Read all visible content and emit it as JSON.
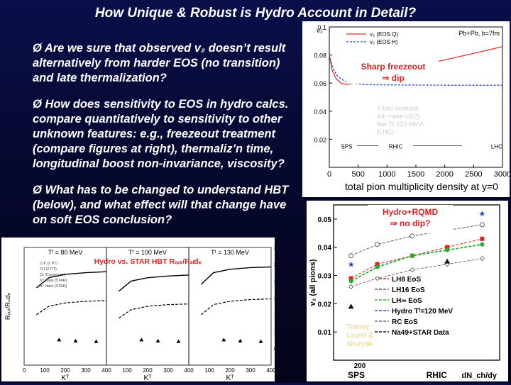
{
  "title": "How Unique & Robust is Hydro Account in Detail?",
  "bullet_glyph": "Ø",
  "bullets": [
    {
      "text": "Are we sure that observed v₂ doesn’t result alternatively from harder EOS (no transition) and late thermalization?"
    },
    {
      "text": "How does sensitivity to EOS in hydro calcs. compare quantitatively to sensitivity to other unknown features: e.g., freezeout treatment (compare figures at right), thermaliz’n time, longitudinal boost non-invariance, viscosity?"
    },
    {
      "text": "What has to be changed to understand HBT (below), and what effect will that change have on soft EOS conclusion?"
    }
  ],
  "chart_data": [
    {
      "type": "line",
      "title": "",
      "ylabel": "v₂",
      "xlabel": "total pion multiplicity density at y=0",
      "xlim": [
        0,
        3000
      ],
      "ylim": [
        0,
        0.1
      ],
      "xticks": [
        0,
        500,
        1000,
        1500,
        2000,
        2500,
        3000
      ],
      "yticks": [
        0.02,
        0.04,
        0.06,
        0.08,
        0.1
      ],
      "ytick_labels": [
        "0.02",
        "0.04",
        "0.06",
        "0.08",
        "0.1"
      ],
      "legend_title": "Pb+Pb, b=7fm",
      "series": [
        {
          "name": "v₂ (EOS Q)",
          "color": "#e0302a",
          "x": [
            0,
            50,
            120,
            200,
            300,
            400,
            500,
            700,
            1000,
            1500,
            2000,
            2500,
            3000
          ],
          "y": [
            0.08,
            0.069,
            0.063,
            0.06,
            0.059,
            0.0598,
            0.061,
            0.0638,
            0.0672,
            0.072,
            0.0765,
            0.0812,
            0.086
          ]
        },
        {
          "name": "v₂ (EOS H)",
          "color": "#2a4ad0",
          "x": [
            0,
            50,
            120,
            200,
            300,
            400,
            600,
            800,
            1000,
            1500,
            2000,
            2500,
            3000
          ],
          "y": [
            0.08,
            0.072,
            0.066,
            0.063,
            0.061,
            0.06,
            0.059,
            0.0588,
            0.0587,
            0.0586,
            0.0585,
            0.0585,
            0.0585
          ]
        }
      ],
      "markers": [
        {
          "label": "SPS",
          "x": 300
        },
        {
          "label": "RHIC",
          "x": 1150
        },
        {
          "label": "LHC",
          "x": 2900
        }
      ],
      "annotation": "Sharp freezeout\n⇒ dip",
      "faded_note": "7-fold increase\nwill make v2(2)\nlike Tc 120 MeV!\n(LHC)"
    },
    {
      "type": "line",
      "title": "",
      "ylabel": "v₂ (all pions)",
      "xlabel": "dN_ch/dy",
      "ylim": [
        0,
        0.055
      ],
      "yticks": [
        0.01,
        0.02,
        0.03,
        0.04,
        0.05
      ],
      "ytick_labels": [
        "0.01",
        "0.02",
        "0.03",
        "0.04",
        "0.05"
      ],
      "xticks": [
        200
      ],
      "xtick_labels": [
        "200"
      ],
      "categories_below": [
        "SPS",
        "RHIC"
      ],
      "annotation": "Hydro+RQMD\n⇒ no dip?",
      "faded_note": "Teaney\nLauret &\nShuryak",
      "series": [
        {
          "name": "LH8 EoS",
          "color": "#e02020",
          "marker": "square",
          "x": [
            150,
            300,
            500,
            700,
            900
          ],
          "y": [
            0.029,
            0.034,
            0.037,
            0.04,
            0.043
          ]
        },
        {
          "name": "LH16 EoS",
          "color": "#5a5a5a",
          "marker": "circle-open",
          "x": [
            150,
            300,
            500,
            700,
            900
          ],
          "y": [
            0.037,
            0.041,
            0.044,
            0.046,
            0.048
          ]
        },
        {
          "name": "LH∞ EoS",
          "color": "#20b030",
          "marker": "circle",
          "x": [
            150,
            300,
            500,
            700,
            900
          ],
          "y": [
            0.028,
            0.033,
            0.037,
            0.039,
            0.041
          ]
        },
        {
          "name": "Hydro Tᶠ=120 MeV",
          "color": "#2040d0",
          "marker": "star",
          "x": [
            150,
            900
          ],
          "y": [
            0.034,
            0.052
          ]
        },
        {
          "name": "RC EoS",
          "color": "#707070",
          "marker": "diamond-open",
          "x": [
            150,
            300,
            500,
            700,
            900
          ],
          "y": [
            0.026,
            0.029,
            0.032,
            0.034,
            0.036
          ]
        },
        {
          "name": "Na49+STAR Data",
          "color": "#111111",
          "marker": "triangle",
          "x": [
            150,
            700
          ],
          "y": [
            0.019,
            0.035
          ]
        }
      ]
    },
    {
      "type": "line",
      "title": "Hydro vs. STAR HBT Rₒᵤₜ/Rₛᵢdₑ",
      "ylabel": "Rₒᵤₜ/Rₛᵢdₑ",
      "xlabel": "Kᵀ",
      "xlim": [
        0,
        400
      ],
      "ylim": [
        0,
        3.5
      ],
      "xticks": [
        0,
        100,
        200,
        300,
        400
      ],
      "yticks": [
        0.5,
        1,
        1.5,
        2,
        2.5,
        3,
        3.5
      ],
      "panels": [
        {
          "label": "Tᶠ = 80 MeV",
          "solid": [
            2.3,
            2.6,
            2.7,
            2.75,
            2.78
          ],
          "dashed": [
            1.5,
            1.75,
            1.85,
            1.9,
            1.92
          ],
          "data": [
            0.75,
            0.72,
            0.7
          ]
        },
        {
          "label": "Tᶠ = 100 MeV",
          "solid": [
            2.2,
            2.5,
            2.6,
            2.65,
            2.68
          ],
          "dashed": [
            1.4,
            1.65,
            1.75,
            1.8,
            1.82
          ],
          "data": [
            0.75,
            0.72,
            0.7
          ]
        },
        {
          "label": "Tᶠ = 130 MeV",
          "solid": [
            2.4,
            2.75,
            2.85,
            2.9,
            2.92
          ],
          "dashed": [
            1.5,
            1.8,
            1.9,
            1.95,
            1.97
          ],
          "data": [
            0.75,
            0.72,
            0.7
          ]
        }
      ],
      "kt_values": [
        60,
        120,
        200,
        300,
        400
      ],
      "data_kt": [
        170,
        250,
        350
      ],
      "legend": [
        "CIII (2 PT)",
        "CII (2 PT)",
        "CI (Crossover)",
        "π⁺ data (STAR)",
        "π⁻ data (STAR)"
      ]
    }
  ]
}
